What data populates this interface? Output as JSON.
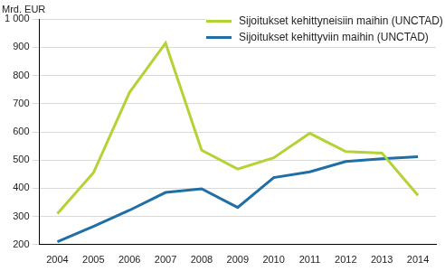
{
  "chart_data": {
    "type": "line",
    "ylabel": "Mrd. EUR",
    "categories": [
      "2004",
      "2005",
      "2006",
      "2007",
      "2008",
      "2009",
      "2010",
      "2011",
      "2012",
      "2013",
      "2014"
    ],
    "series": [
      {
        "name": "Sijoitukset kehittyneisiin maihin (UNCTAD)",
        "color": "#b3d335",
        "values": [
          310,
          455,
          740,
          915,
          535,
          468,
          508,
          595,
          530,
          525,
          375
        ]
      },
      {
        "name": "Sijoitukset kehittyviin maihin (UNCTAD)",
        "color": "#1f6fa6",
        "values": [
          210,
          265,
          322,
          385,
          398,
          332,
          438,
          458,
          495,
          505,
          512
        ]
      }
    ],
    "ylim": [
      200,
      1000
    ],
    "yticks": [
      200,
      300,
      400,
      500,
      600,
      700,
      800,
      900,
      {
        "value": 1000,
        "label": "1 000"
      }
    ],
    "grid": true,
    "legend": "top-right"
  }
}
